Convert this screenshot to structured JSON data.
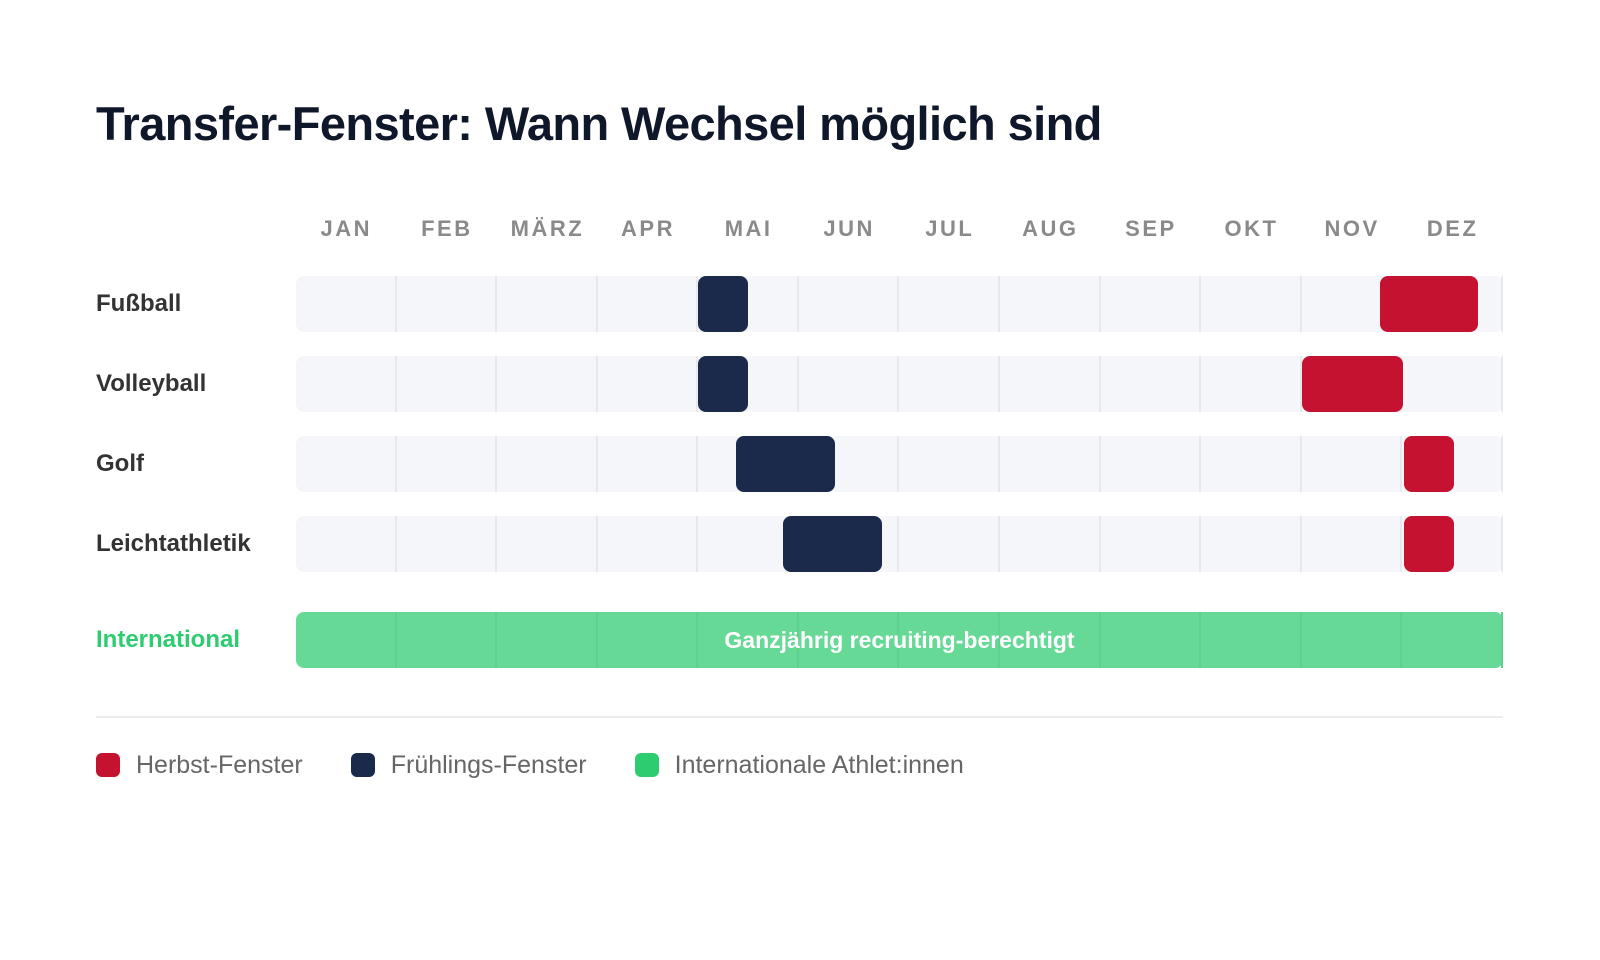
{
  "title": "Transfer-Fenster: Wann Wechsel möglich sind",
  "colors": {
    "fall": "#c41230",
    "spring": "#1b2a4a",
    "international": "#2ecc71",
    "international_bar": "#66d997",
    "track": "#f5f6fa",
    "title": "#0f172a"
  },
  "months": [
    "JAN",
    "FEB",
    "MÄRZ",
    "APR",
    "MAI",
    "JUN",
    "JUL",
    "AUG",
    "SEP",
    "OKT",
    "NOV",
    "DEZ"
  ],
  "rows": [
    {
      "label": "Fußball",
      "bars": [
        {
          "type": "spring",
          "left_pct": 33.31,
          "width_pct": 4.14
        },
        {
          "type": "fall",
          "left_pct": 89.81,
          "width_pct": 8.12
        }
      ]
    },
    {
      "label": "Volleyball",
      "bars": [
        {
          "type": "spring",
          "left_pct": 33.31,
          "width_pct": 4.14
        },
        {
          "type": "fall",
          "left_pct": 83.35,
          "width_pct": 8.37
        }
      ]
    },
    {
      "label": "Golf",
      "bars": [
        {
          "type": "spring",
          "left_pct": 36.45,
          "width_pct": 8.2
        },
        {
          "type": "fall",
          "left_pct": 91.8,
          "width_pct": 4.14
        }
      ]
    },
    {
      "label": "Leichtathletik",
      "bars": [
        {
          "type": "spring",
          "left_pct": 40.35,
          "width_pct": 8.2
        },
        {
          "type": "fall",
          "left_pct": 91.8,
          "width_pct": 4.14
        }
      ]
    }
  ],
  "international": {
    "label": "International",
    "bar_text": "Ganzjährig recruiting-berechtigt"
  },
  "legend": [
    {
      "label": "Herbst-Fenster",
      "color": "#c41230"
    },
    {
      "label": "Frühlings-Fenster",
      "color": "#1b2a4a"
    },
    {
      "label": "Internationale Athlet:innen",
      "color": "#2ecc71"
    }
  ],
  "chart_data": {
    "type": "gantt",
    "title": "Transfer-Fenster: Wann Wechsel möglich sind",
    "xlabel": "",
    "ylabel": "",
    "x_ticks": [
      "JAN",
      "FEB",
      "MÄRZ",
      "APR",
      "MAI",
      "JUN",
      "JUL",
      "AUG",
      "SEP",
      "OKT",
      "NOV",
      "DEZ"
    ],
    "x_range_months": [
      1,
      13
    ],
    "categories": [
      "Fußball",
      "Volleyball",
      "Golf",
      "Leichtathletik",
      "International"
    ],
    "series": [
      {
        "name": "Frühlings-Fenster",
        "color": "#1b2a4a",
        "intervals": [
          {
            "category": "Fußball",
            "start_month": 5.0,
            "end_month": 5.5
          },
          {
            "category": "Volleyball",
            "start_month": 5.0,
            "end_month": 5.5
          },
          {
            "category": "Golf",
            "start_month": 5.38,
            "end_month": 6.36
          },
          {
            "category": "Leichtathletik",
            "start_month": 5.85,
            "end_month": 6.83
          }
        ]
      },
      {
        "name": "Herbst-Fenster",
        "color": "#c41230",
        "intervals": [
          {
            "category": "Fußball",
            "start_month": 11.79,
            "end_month": 12.76
          },
          {
            "category": "Volleyball",
            "start_month": 11.01,
            "end_month": 12.01
          },
          {
            "category": "Golf",
            "start_month": 12.02,
            "end_month": 12.52
          },
          {
            "category": "Leichtathletik",
            "start_month": 12.02,
            "end_month": 12.52
          }
        ]
      },
      {
        "name": "Internationale Athlet:innen",
        "color": "#2ecc71",
        "intervals": [
          {
            "category": "International",
            "start_month": 1.0,
            "end_month": 13.0,
            "annotation": "Ganzjährig recruiting-berechtigt"
          }
        ]
      }
    ],
    "legend": [
      "Herbst-Fenster",
      "Frühlings-Fenster",
      "Internationale Athlet:innen"
    ],
    "legend_position": "bottom-left",
    "grid": "vertical month dividers"
  }
}
